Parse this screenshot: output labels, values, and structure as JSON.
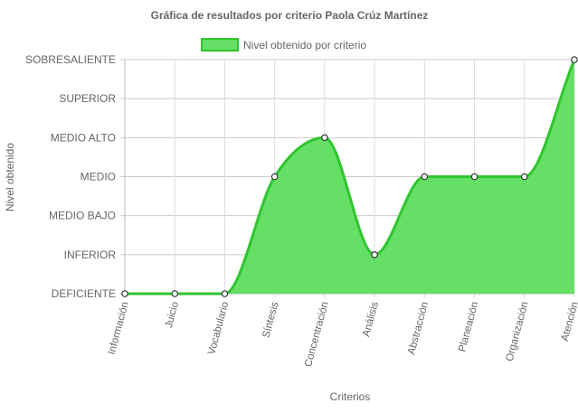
{
  "chart_data": {
    "type": "area",
    "title": "Gráfica de resultados por criterio Paola Crúz Martínez",
    "xlabel": "Criterios",
    "ylabel": "Nivel obtenido",
    "categories": [
      "Información",
      "Juicio",
      "Vocabulario",
      "Síntesis",
      "Concentración",
      "Análisis",
      "Abstracción",
      "Planeación",
      "Organización",
      "Atención"
    ],
    "y_levels": [
      "DEFICIENTE",
      "INFERIOR",
      "MEDIO BAJO",
      "MEDIO",
      "MEDIO ALTO",
      "SUPERIOR",
      "SOBRESALIENTE"
    ],
    "ylim": [
      0,
      6
    ],
    "grid": true,
    "legend_position": "top",
    "series": [
      {
        "name": "Nivel obtenido por criterio",
        "values": [
          0,
          0,
          0,
          3,
          4,
          1,
          3,
          3,
          3,
          6
        ],
        "fill_color": "#66df66",
        "line_color": "#2fc52f"
      }
    ]
  }
}
